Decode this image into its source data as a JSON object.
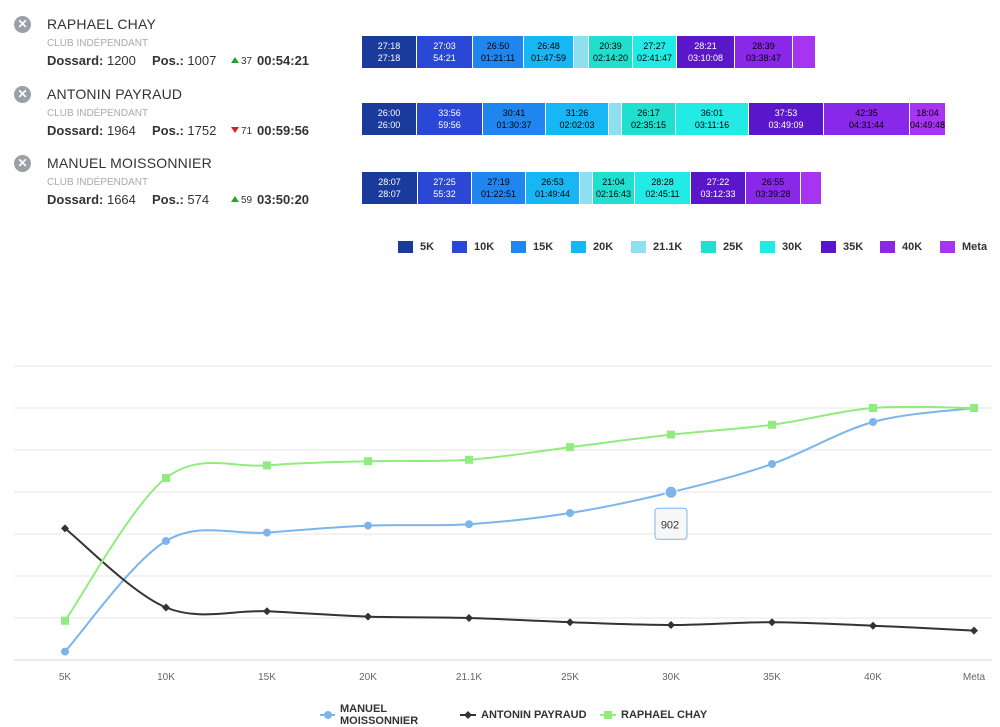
{
  "runners": [
    {
      "name": "RAPHAEL CHAY",
      "club": "CLUB INDÉPENDANT",
      "bib_label": "Dossard:",
      "bib": "1200",
      "pos_label": "Pos.:",
      "pos": "1007",
      "delta": "37",
      "delta_dir": "up",
      "time": "00:54:21",
      "splits": [
        {
          "lap": "27:18",
          "total": "27:18",
          "color": "#1a3a9c",
          "dark": true
        },
        {
          "lap": "27:03",
          "total": "54:21",
          "color": "#2b47d6",
          "dark": true
        },
        {
          "lap": "26:50",
          "total": "01:21:11",
          "color": "#1f86f0",
          "dark": false
        },
        {
          "lap": "26:48",
          "total": "01:47:59",
          "color": "#17b6f5",
          "dark": false
        },
        {
          "lap": "",
          "total": "",
          "color": "#8ee0f0",
          "dark": false
        },
        {
          "lap": "20:39",
          "total": "02:14:20",
          "color": "#1fdfcf",
          "dark": false
        },
        {
          "lap": "27:27",
          "total": "02:41:47",
          "color": "#22ebe6",
          "dark": false
        },
        {
          "lap": "28:21",
          "total": "03:10:08",
          "color": "#5a17c9",
          "dark": true
        },
        {
          "lap": "28:39",
          "total": "03:38:47",
          "color": "#8a28ea",
          "dark": false
        },
        {
          "lap": "",
          "total": "",
          "color": "#a634f0",
          "dark": false
        }
      ]
    },
    {
      "name": "ANTONIN PAYRAUD",
      "club": "CLUB INDÉPENDANT",
      "bib_label": "Dossard:",
      "bib": "1964",
      "pos_label": "Pos.:",
      "pos": "1752",
      "delta": "71",
      "delta_dir": "down",
      "time": "00:59:56",
      "splits": [
        {
          "lap": "26:00",
          "total": "26:00",
          "color": "#1a3a9c",
          "dark": true
        },
        {
          "lap": "33:56",
          "total": "59:56",
          "color": "#2b47d6",
          "dark": true
        },
        {
          "lap": "30:41",
          "total": "01:30:37",
          "color": "#1f86f0",
          "dark": false
        },
        {
          "lap": "31:26",
          "total": "02:02:03",
          "color": "#17b6f5",
          "dark": false
        },
        {
          "lap": "",
          "total": "",
          "color": "#8ee0f0",
          "dark": false
        },
        {
          "lap": "26:17",
          "total": "02:35:15",
          "color": "#1fdfcf",
          "dark": false
        },
        {
          "lap": "36:01",
          "total": "03:11:16",
          "color": "#22ebe6",
          "dark": false
        },
        {
          "lap": "37:53",
          "total": "03:49:09",
          "color": "#5a17c9",
          "dark": true
        },
        {
          "lap": "42:35",
          "total": "04:31:44",
          "color": "#8a28ea",
          "dark": false
        },
        {
          "lap": "18:04",
          "total": "04:49:48",
          "color": "#a634f0",
          "dark": false
        }
      ]
    },
    {
      "name": "MANUEL MOISSONNIER",
      "club": "CLUB INDÉPENDANT",
      "bib_label": "Dossard:",
      "bib": "1664",
      "pos_label": "Pos.:",
      "pos": "574",
      "delta": "59",
      "delta_dir": "up",
      "time": "03:50:20",
      "splits": [
        {
          "lap": "28:07",
          "total": "28:07",
          "color": "#1a3a9c",
          "dark": true
        },
        {
          "lap": "27:25",
          "total": "55:32",
          "color": "#2b47d6",
          "dark": true
        },
        {
          "lap": "27:19",
          "total": "01:22:51",
          "color": "#1f86f0",
          "dark": false
        },
        {
          "lap": "26:53",
          "total": "01:49:44",
          "color": "#17b6f5",
          "dark": false
        },
        {
          "lap": "",
          "total": "",
          "color": "#8ee0f0",
          "dark": false
        },
        {
          "lap": "21:04",
          "total": "02:16:43",
          "color": "#1fdfcf",
          "dark": false
        },
        {
          "lap": "28:28",
          "total": "02:45:11",
          "color": "#22ebe6",
          "dark": false
        },
        {
          "lap": "27:22",
          "total": "03:12:33",
          "color": "#5a17c9",
          "dark": true
        },
        {
          "lap": "26:55",
          "total": "03:39:28",
          "color": "#8a28ea",
          "dark": false
        },
        {
          "lap": "",
          "total": "",
          "color": "#a634f0",
          "dark": false
        }
      ]
    }
  ],
  "split_legend": [
    {
      "label": "5K",
      "color": "#1a3a9c"
    },
    {
      "label": "10K",
      "color": "#2b47d6"
    },
    {
      "label": "15K",
      "color": "#1f86f0"
    },
    {
      "label": "20K",
      "color": "#17b6f5"
    },
    {
      "label": "21.1K",
      "color": "#8ee0f0"
    },
    {
      "label": "25K",
      "color": "#1fdfcf"
    },
    {
      "label": "30K",
      "color": "#22ebe6"
    },
    {
      "label": "35K",
      "color": "#5a17c9"
    },
    {
      "label": "40K",
      "color": "#8a28ea"
    },
    {
      "label": "Meta",
      "color": "#a634f0"
    }
  ],
  "chart_data": {
    "type": "line",
    "categories": [
      "5K",
      "10K",
      "15K",
      "20K",
      "21.1K",
      "25K",
      "30K",
      "35K",
      "40K",
      "Meta"
    ],
    "y_reversed": true,
    "ylim": [
      2100,
      0
    ],
    "grid": true,
    "legend_position": "bottom",
    "series": [
      {
        "name": "MANUEL MOISSONNIER",
        "color": "#7cb5ec",
        "marker": "circle",
        "values": [
          2040,
          1250,
          1190,
          1140,
          1130,
          1050,
          902,
          700,
          400,
          300
        ]
      },
      {
        "name": "ANTONIN PAYRAUD",
        "color": "#333333",
        "marker": "diamond",
        "values": [
          1160,
          1725,
          1752,
          1790,
          1800,
          1830,
          1850,
          1830,
          1855,
          1890
        ]
      },
      {
        "name": "RAPHAEL CHAY",
        "color": "#90ed7d",
        "marker": "square",
        "values": [
          1820,
          800,
          710,
          680,
          670,
          580,
          490,
          420,
          300,
          300
        ]
      }
    ],
    "tooltip": {
      "series": 0,
      "index": 6,
      "text": "902"
    }
  }
}
